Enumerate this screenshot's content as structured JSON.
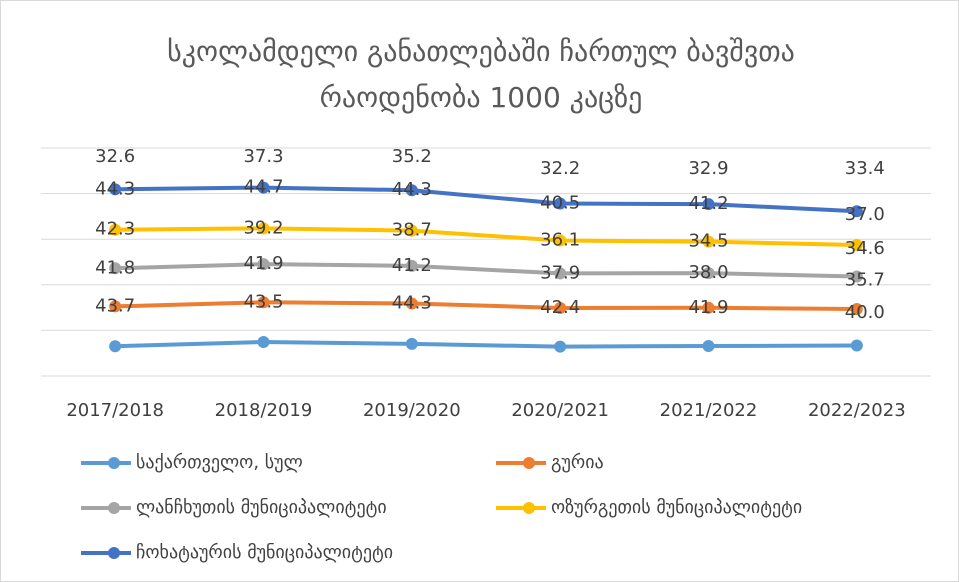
{
  "chart_data": {
    "type": "line",
    "stacked": true,
    "title": "სკოლამდელი განათლებაში ჩართულ ბავშვთა რაოდენობა 1000 კაცზე",
    "categories": [
      "2017/2018",
      "2018/2019",
      "2019/2020",
      "2020/2021",
      "2021/2022",
      "2022/2023"
    ],
    "series": [
      {
        "name": "საქართველო, სულ",
        "color": "#5b9bd5",
        "values": [
          32.6,
          37.3,
          35.2,
          32.2,
          32.9,
          33.4
        ],
        "value_labels": [
          "32.6",
          "37.3",
          "35.2",
          "32.2",
          "32.9",
          "33.4"
        ]
      },
      {
        "name": "გურია",
        "color": "#ed7d31",
        "values": [
          43.7,
          43.5,
          44.3,
          42.4,
          41.9,
          40.0
        ],
        "value_labels": [
          "43.7",
          "43.5",
          "44.3",
          "42.4",
          "41.9",
          "40.0"
        ]
      },
      {
        "name": "ლანჩხუთის მუნიციპალიტეტი",
        "color": "#a5a5a5",
        "values": [
          41.8,
          41.9,
          41.2,
          37.9,
          38.0,
          35.7
        ],
        "value_labels": [
          "41.8",
          "41.9",
          "41.2",
          "37.9",
          "38.0",
          "35.7"
        ]
      },
      {
        "name": "ოზურგეთის მუნიციპალიტეტი",
        "color": "#ffc000",
        "values": [
          42.3,
          39.2,
          38.7,
          36.1,
          34.5,
          34.6
        ],
        "value_labels": [
          "42.3",
          "39.2",
          "38.7",
          "36.1",
          "34.5",
          "34.6"
        ]
      },
      {
        "name": "ჩოხატაურის მუნიციპალიტეტი",
        "color": "#4472c4",
        "values": [
          44.3,
          44.7,
          44.3,
          40.5,
          41.2,
          37.0
        ],
        "value_labels": [
          "44.3",
          "44.7",
          "44.3",
          "40.5",
          "41.2",
          "37.0"
        ]
      }
    ],
    "ylim": [
      0,
      250
    ],
    "yticks": [
      0,
      50,
      100,
      150,
      200,
      250
    ],
    "grid": true,
    "y_axis_visible": false,
    "legend": "bottom"
  }
}
